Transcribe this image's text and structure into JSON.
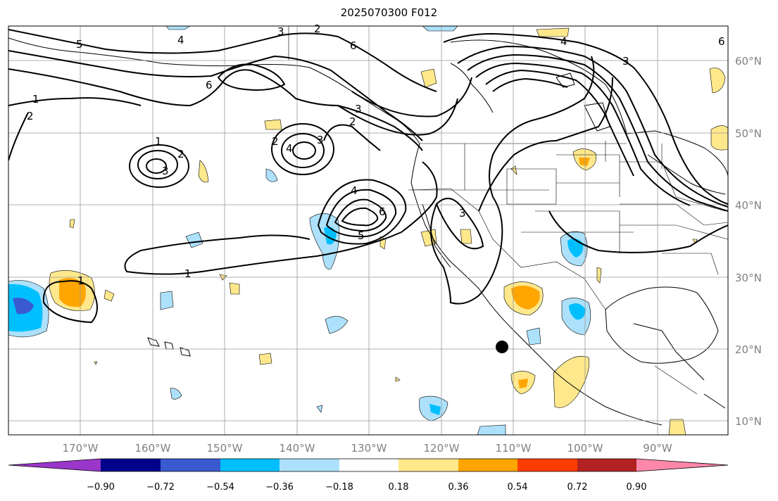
{
  "title": "2025070300 F012",
  "lat_labels": [
    "60°N",
    "50°N",
    "40°N",
    "30°N",
    "20°N",
    "10°N"
  ],
  "lon_labels": [
    "170°W",
    "160°W",
    "150°W",
    "140°W",
    "130°W",
    "120°W",
    "110°W",
    "100°W",
    "90°W"
  ],
  "colorbar": {
    "tick_labels": [
      "−0.90",
      "−0.72",
      "−0.54",
      "−0.36",
      "−0.18",
      "0.18",
      "0.36",
      "0.54",
      "0.72",
      "0.90"
    ],
    "colors": [
      "#9a36c9",
      "#02028c",
      "#3a5bcf",
      "#00bfff",
      "#ade1fb",
      "#ffffff",
      "#ffe88c",
      "#ffa500",
      "#ff3d00",
      "#b22222",
      "#ff88aa"
    ]
  },
  "contour_labels": [
    "5",
    "3",
    "2",
    "4",
    "6",
    "6",
    "1",
    "2",
    "1",
    "2",
    "3",
    "2",
    "3",
    "4",
    "3",
    "2",
    "4",
    "6",
    "5",
    "1",
    "3",
    "4",
    "3",
    "6",
    "1"
  ]
}
